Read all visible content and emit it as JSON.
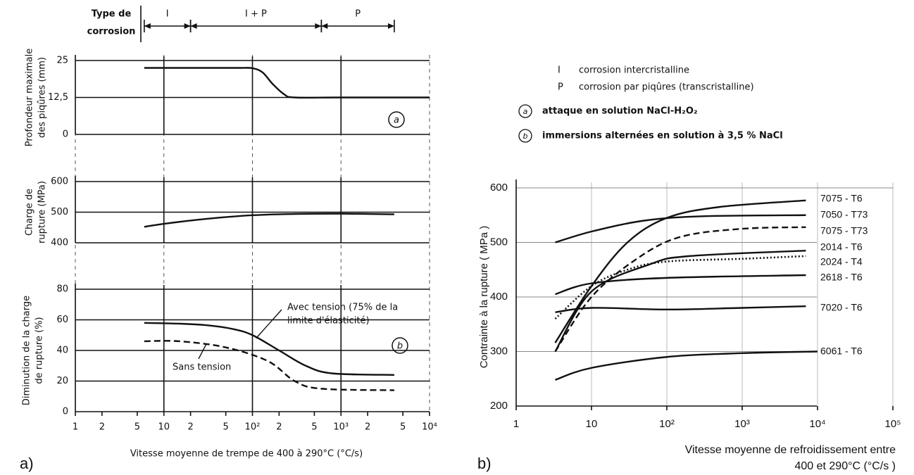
{
  "chart_data": [
    {
      "type": "line",
      "corrosion_label": [
        "Type de",
        "corrosion"
      ],
      "corrosion_zones": [
        {
          "label": "I",
          "from": 6,
          "to": 20
        },
        {
          "label": "I + P",
          "from": 20,
          "to": 600
        },
        {
          "label": "P",
          "from": 600,
          "to": 4000
        }
      ],
      "ylabel": [
        "Profondeur maximale",
        "des piqûres (mm)"
      ],
      "marker": "a",
      "xlim": [
        1,
        10000
      ],
      "ylim": [
        0,
        25
      ],
      "yticks": [
        0,
        {
          "value": 12.5,
          "label": "12,5"
        },
        25
      ],
      "series": [
        {
          "color": "#111111",
          "style": "solid",
          "x": [
            6,
            10,
            30,
            70,
            100,
            130,
            170,
            230,
            300,
            1000,
            10000
          ],
          "values": [
            22.5,
            22.5,
            22.5,
            22.5,
            22.4,
            21,
            17,
            13.5,
            12.5,
            12.5,
            12.5
          ]
        }
      ]
    },
    {
      "type": "line",
      "ylabel": [
        "Charge de",
        "rupture (MPa)"
      ],
      "xlim": [
        1,
        10000
      ],
      "ylim": [
        400,
        600
      ],
      "yticks": [
        400,
        500,
        600
      ],
      "series": [
        {
          "color": "#111111",
          "style": "solid",
          "x": [
            6,
            10,
            30,
            100,
            300,
            1000,
            4000
          ],
          "values": [
            452,
            462,
            478,
            490,
            494,
            495,
            493
          ]
        }
      ]
    },
    {
      "type": "line",
      "ylabel": [
        "Diminution de la charge",
        "de rupture (%)"
      ],
      "marker": "b",
      "annotations": [
        "Avec tension (75% de la",
        "limite d'élasticité)",
        "Sans tension"
      ],
      "xlabel": "Vitesse moyenne de trempe de 400 à 290°C  (°C/s)",
      "caption": "a)",
      "xlim": [
        1,
        10000
      ],
      "ylim": [
        0,
        80
      ],
      "yticks": [
        0,
        20,
        40,
        60,
        80
      ],
      "xticks": [
        1,
        {
          "value": 2,
          "label": "2"
        },
        {
          "value": 5,
          "label": "5"
        },
        10,
        {
          "value": 20,
          "label": "2"
        },
        {
          "value": 50,
          "label": "5"
        },
        {
          "value": 100,
          "label": "10²"
        },
        {
          "value": 200,
          "label": "2"
        },
        {
          "value": 500,
          "label": "5"
        },
        {
          "value": 1000,
          "label": "10³"
        },
        {
          "value": 2000,
          "label": "2"
        },
        {
          "value": 5000,
          "label": "5"
        },
        {
          "value": 10000,
          "label": "10⁴"
        }
      ],
      "series": [
        {
          "color": "#111111",
          "style": "solid",
          "x": [
            6,
            15,
            30,
            60,
            100,
            200,
            400,
            800,
            4000
          ],
          "values": [
            58,
            57.5,
            56.5,
            54,
            50,
            40,
            30,
            25,
            24
          ]
        },
        {
          "color": "#111111",
          "style": "dashed",
          "x": [
            6,
            15,
            50,
            150,
            300,
            600,
            4000
          ],
          "values": [
            46,
            46,
            42,
            33,
            20,
            15,
            14
          ]
        }
      ]
    },
    {
      "type": "line",
      "ylabel": "Contrainte à la rupture ( MPa )",
      "xlabel": [
        "Vitesse moyenne de refroidissement entre",
        "400 et 290°C  (°C/s )"
      ],
      "caption": "b)",
      "legend": [
        {
          "symbol": "I",
          "text": "corrosion intercristalline"
        },
        {
          "symbol": "P",
          "text": "corrosion par piqûres (transcristalline)"
        },
        {
          "symbol": "a",
          "text": "attaque en solution NaCl-H₂O₂"
        },
        {
          "symbol": "b",
          "text": "immersions alternées en solution à 3,5 % NaCl"
        }
      ],
      "xlim": [
        1,
        100000
      ],
      "ylim": [
        200,
        600
      ],
      "yticks": [
        200,
        300,
        400,
        500,
        600
      ],
      "xticks": [
        1,
        10,
        {
          "value": 100,
          "label": "10²"
        },
        {
          "value": 1000,
          "label": "10³"
        },
        {
          "value": 10000,
          "label": "10⁴"
        },
        {
          "value": 100000,
          "label": "10⁵"
        }
      ],
      "series": [
        {
          "name": "7075 - T6",
          "color": "#111111",
          "style": "solid",
          "x": [
            3.3,
            10,
            30,
            100,
            500,
            7000
          ],
          "values": [
            316,
            420,
            500,
            545,
            565,
            577
          ]
        },
        {
          "name": "7050 - T73",
          "color": "#111111",
          "style": "solid",
          "x": [
            3.3,
            10,
            50,
            300,
            7000
          ],
          "values": [
            500,
            520,
            540,
            548,
            550
          ]
        },
        {
          "name": "7075 - T73",
          "color": "#111111",
          "style": "dashed",
          "x": [
            3.3,
            10,
            40,
            150,
            1000,
            7000
          ],
          "values": [
            300,
            400,
            470,
            510,
            525,
            528
          ]
        },
        {
          "name": "2014 - T6",
          "color": "#111111",
          "style": "solid",
          "x": [
            3.3,
            10,
            60,
            200,
            7000
          ],
          "values": [
            300,
            410,
            460,
            475,
            485
          ]
        },
        {
          "name": "2024 - T4",
          "color": "#111111",
          "style": "dotted",
          "x": [
            3.3,
            10,
            30,
            100,
            1000,
            7000
          ],
          "values": [
            360,
            420,
            450,
            465,
            470,
            475
          ]
        },
        {
          "name": "2618 - T6",
          "color": "#111111",
          "style": "solid",
          "x": [
            3.3,
            10,
            100,
            7000
          ],
          "values": [
            405,
            425,
            435,
            440
          ]
        },
        {
          "name": "7020 - T6",
          "color": "#111111",
          "style": "solid",
          "x": [
            3.3,
            10,
            100,
            1000,
            7000
          ],
          "values": [
            372,
            380,
            377,
            380,
            383
          ]
        },
        {
          "name": "6061 - T6",
          "color": "#111111",
          "style": "solid",
          "x": [
            3.3,
            10,
            100,
            1000,
            10000
          ],
          "values": [
            248,
            270,
            290,
            297,
            300
          ]
        }
      ]
    }
  ]
}
